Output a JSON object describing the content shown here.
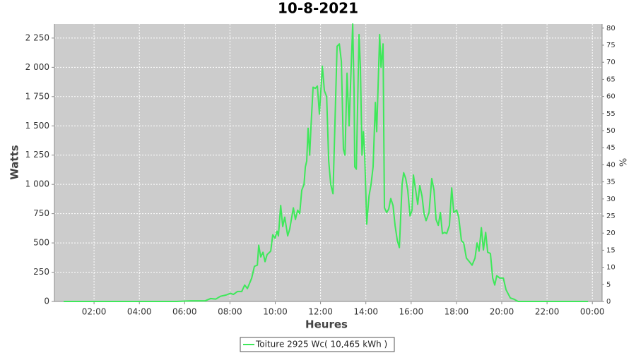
{
  "chart_data": {
    "type": "line",
    "title": "10-8-2021",
    "xlabel": "Heures",
    "ylabel": "Watts",
    "y2label": "%",
    "x": [
      0.66,
      5.65,
      6.27,
      6.9,
      7.15,
      7.37,
      7.59,
      7.83,
      8.02,
      8.15,
      8.33,
      8.52,
      8.65,
      8.77,
      8.96,
      9.08,
      9.21,
      9.27,
      9.36,
      9.46,
      9.55,
      9.64,
      9.8,
      9.89,
      9.99,
      10.08,
      10.14,
      10.24,
      10.33,
      10.42,
      10.55,
      10.64,
      10.8,
      10.89,
      10.99,
      11.08,
      11.17,
      11.27,
      11.33,
      11.39,
      11.45,
      11.52,
      11.58,
      11.67,
      11.77,
      11.86,
      11.95,
      12.08,
      12.17,
      12.27,
      12.36,
      12.45,
      12.55,
      12.64,
      12.73,
      12.83,
      12.92,
      13.01,
      13.08,
      13.17,
      13.26,
      13.42,
      13.48,
      13.51,
      13.58,
      13.7,
      13.76,
      13.83,
      13.89,
      13.95,
      14.04,
      14.14,
      14.23,
      14.32,
      14.42,
      14.48,
      14.61,
      14.67,
      14.76,
      14.82,
      14.92,
      15.01,
      15.1,
      15.2,
      15.29,
      15.39,
      15.48,
      15.6,
      15.67,
      15.76,
      15.85,
      15.95,
      16.04,
      16.1,
      16.2,
      16.29,
      16.38,
      16.48,
      16.57,
      16.66,
      16.79,
      16.91,
      17.01,
      17.1,
      17.2,
      17.29,
      17.38,
      17.48,
      17.57,
      17.69,
      17.79,
      17.88,
      18.01,
      18.1,
      18.22,
      18.32,
      18.44,
      18.57,
      18.69,
      18.82,
      18.91,
      19.0,
      19.1,
      19.19,
      19.29,
      19.38,
      19.5,
      19.6,
      19.69,
      19.78,
      19.91,
      20.07,
      20.19,
      20.38,
      20.53,
      20.72,
      23.81
    ],
    "series": [
      {
        "name": "Toiture 2925 Wc( 10,465 kWh )",
        "color": "#3ee85a",
        "values": [
          0,
          0,
          5,
          5,
          25,
          20,
          45,
          55,
          70,
          60,
          85,
          85,
          140,
          110,
          200,
          300,
          310,
          480,
          380,
          420,
          340,
          400,
          430,
          570,
          540,
          600,
          560,
          820,
          640,
          720,
          560,
          620,
          800,
          700,
          780,
          750,
          950,
          1000,
          1150,
          1200,
          1480,
          1250,
          1500,
          1830,
          1820,
          1840,
          1600,
          2010,
          1800,
          1750,
          1200,
          1000,
          920,
          1550,
          2180,
          2200,
          2050,
          1300,
          1250,
          1950,
          1500,
          2370,
          1800,
          1150,
          1130,
          2280,
          2000,
          1250,
          1450,
          1250,
          660,
          900,
          1000,
          1150,
          1700,
          1450,
          2280,
          2000,
          2200,
          800,
          760,
          790,
          880,
          820,
          650,
          520,
          460,
          1000,
          1100,
          1050,
          950,
          730,
          780,
          1080,
          950,
          830,
          990,
          900,
          750,
          690,
          760,
          1050,
          950,
          700,
          650,
          760,
          580,
          590,
          580,
          650,
          970,
          760,
          780,
          720,
          520,
          500,
          370,
          340,
          310,
          370,
          500,
          430,
          630,
          440,
          590,
          420,
          410,
          200,
          140,
          220,
          200,
          200,
          100,
          30,
          20,
          0,
          0
        ]
      }
    ],
    "xlim": [
      0.25,
      24.43
    ],
    "xticks": [
      {
        "value": 2,
        "label": "02:00"
      },
      {
        "value": 4,
        "label": "04:00"
      },
      {
        "value": 6,
        "label": "06:00"
      },
      {
        "value": 8,
        "label": "08:00"
      },
      {
        "value": 10,
        "label": "10:00"
      },
      {
        "value": 12,
        "label": "12:00"
      },
      {
        "value": 14,
        "label": "14:00"
      },
      {
        "value": 16,
        "label": "16:00"
      },
      {
        "value": 18,
        "label": "18:00"
      },
      {
        "value": 20,
        "label": "20:00"
      },
      {
        "value": 22,
        "label": "22:00"
      },
      {
        "value": 24,
        "label": "00:00"
      }
    ],
    "ylim": [
      0,
      2370
    ],
    "yticks": [
      0,
      250,
      500,
      750,
      {
        "value": 1000,
        "label": "1 000"
      },
      {
        "value": 1250,
        "label": "1 250"
      },
      {
        "value": 1500,
        "label": "1 500"
      },
      {
        "value": 1750,
        "label": "1 750"
      },
      {
        "value": 2000,
        "label": "2 000"
      },
      {
        "value": 2250,
        "label": "2 250"
      }
    ],
    "y2lim": [
      0,
      81.2
    ],
    "y2ticks": [
      0,
      5,
      10,
      15,
      20,
      25,
      30,
      35,
      40,
      45,
      50,
      55,
      60,
      65,
      70,
      75,
      80
    ],
    "grid": true,
    "plot_background": "#cccccc",
    "legend": "bottom"
  }
}
